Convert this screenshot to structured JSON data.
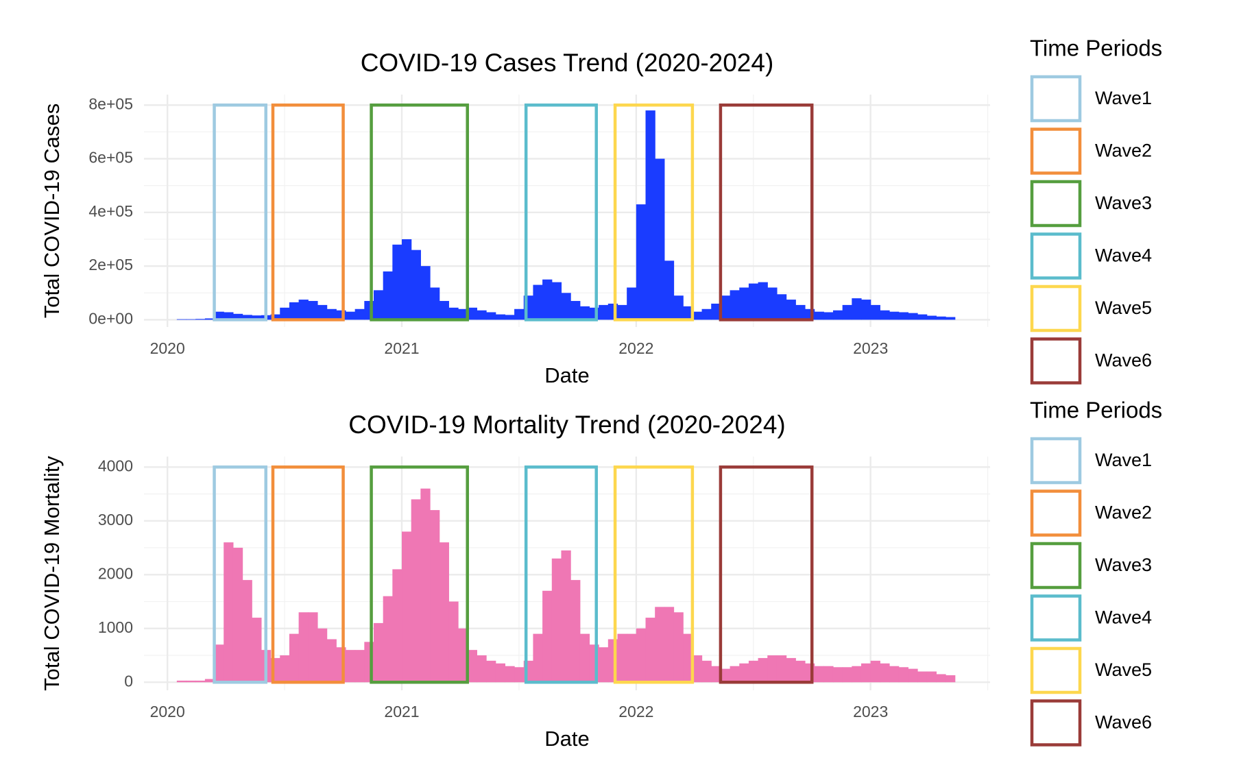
{
  "chart_data": [
    {
      "type": "bar",
      "title": "COVID-19 Cases Trend (2020-2024)",
      "x_label": "Date",
      "y_label": "Total COVID-19 Cases",
      "color": "#1a3cff",
      "grid": true,
      "xlim": [
        2019.9,
        2023.51
      ],
      "xticks": [
        2020,
        2021,
        2022,
        2023
      ],
      "ylim": [
        -27000,
        839000
      ],
      "yticks": [
        {
          "value": 0,
          "label": "0e+00"
        },
        {
          "value": 200000,
          "label": "2e+05"
        },
        {
          "value": 400000,
          "label": "4e+05"
        },
        {
          "value": 600000,
          "label": "6e+05"
        },
        {
          "value": 800000,
          "label": "8e+05"
        }
      ],
      "x": [
        2020.06,
        2020.1,
        2020.14,
        2020.18,
        2020.22,
        2020.26,
        2020.3,
        2020.34,
        2020.38,
        2020.42,
        2020.46,
        2020.5,
        2020.54,
        2020.58,
        2020.62,
        2020.66,
        2020.7,
        2020.74,
        2020.78,
        2020.82,
        2020.86,
        2020.9,
        2020.94,
        2020.98,
        2021.02,
        2021.06,
        2021.1,
        2021.14,
        2021.18,
        2021.22,
        2021.26,
        2021.3,
        2021.34,
        2021.38,
        2021.42,
        2021.46,
        2021.5,
        2021.54,
        2021.58,
        2021.62,
        2021.66,
        2021.7,
        2021.74,
        2021.78,
        2021.82,
        2021.86,
        2021.9,
        2021.94,
        2021.98,
        2022.02,
        2022.06,
        2022.1,
        2022.14,
        2022.18,
        2022.22,
        2022.26,
        2022.3,
        2022.34,
        2022.38,
        2022.42,
        2022.46,
        2022.5,
        2022.54,
        2022.58,
        2022.62,
        2022.66,
        2022.7,
        2022.74,
        2022.78,
        2022.82,
        2022.86,
        2022.9,
        2022.94,
        2022.98,
        2023.02,
        2023.06,
        2023.1,
        2023.14,
        2023.18,
        2023.22,
        2023.26,
        2023.3,
        2023.34
      ],
      "values": [
        2000,
        2000,
        3000,
        5000,
        30000,
        28000,
        22000,
        18000,
        16000,
        17000,
        20000,
        45000,
        65000,
        75000,
        70000,
        55000,
        40000,
        35000,
        30000,
        40000,
        70000,
        110000,
        180000,
        280000,
        300000,
        260000,
        200000,
        120000,
        70000,
        45000,
        40000,
        45000,
        35000,
        28000,
        20000,
        18000,
        40000,
        90000,
        130000,
        150000,
        140000,
        100000,
        70000,
        50000,
        45000,
        55000,
        60000,
        55000,
        120000,
        430000,
        780000,
        600000,
        220000,
        90000,
        50000,
        30000,
        40000,
        60000,
        90000,
        110000,
        120000,
        135000,
        140000,
        120000,
        95000,
        75000,
        55000,
        40000,
        30000,
        28000,
        35000,
        55000,
        80000,
        75000,
        55000,
        35000,
        30000,
        28000,
        25000,
        20000,
        15000,
        12000,
        10000
      ],
      "legend_title": "Time Periods",
      "periods_ymax": 800000,
      "periods": [
        {
          "name": "Wave1",
          "color": "#9ecae1",
          "start": 2020.2,
          "end": 2020.42
        },
        {
          "name": "Wave2",
          "color": "#f28e3b",
          "start": 2020.45,
          "end": 2020.75
        },
        {
          "name": "Wave3",
          "color": "#559e3f",
          "start": 2020.87,
          "end": 2021.28
        },
        {
          "name": "Wave4",
          "color": "#5bbccc",
          "start": 2021.53,
          "end": 2021.83
        },
        {
          "name": "Wave5",
          "color": "#fdd74e",
          "start": 2021.91,
          "end": 2022.24
        },
        {
          "name": "Wave6",
          "color": "#9a3b38",
          "start": 2022.36,
          "end": 2022.75
        }
      ]
    },
    {
      "type": "bar",
      "title": "COVID-19 Mortality Trend (2020-2024)",
      "x_label": "Date",
      "y_label": "Total COVID-19 Mortality",
      "color": "#ef77b4",
      "grid": true,
      "xlim": [
        2019.9,
        2023.51
      ],
      "xticks": [
        2020,
        2021,
        2022,
        2023
      ],
      "ylim": [
        -150,
        4195
      ],
      "yticks": [
        0,
        1000,
        2000,
        3000,
        4000
      ],
      "x": [
        2020.06,
        2020.1,
        2020.14,
        2020.18,
        2020.22,
        2020.26,
        2020.3,
        2020.34,
        2020.38,
        2020.42,
        2020.46,
        2020.5,
        2020.54,
        2020.58,
        2020.62,
        2020.66,
        2020.7,
        2020.74,
        2020.78,
        2020.82,
        2020.86,
        2020.9,
        2020.94,
        2020.98,
        2021.02,
        2021.06,
        2021.1,
        2021.14,
        2021.18,
        2021.22,
        2021.26,
        2021.3,
        2021.34,
        2021.38,
        2021.42,
        2021.46,
        2021.5,
        2021.54,
        2021.58,
        2021.62,
        2021.66,
        2021.7,
        2021.74,
        2021.78,
        2021.82,
        2021.86,
        2021.9,
        2021.94,
        2021.98,
        2022.02,
        2022.06,
        2022.1,
        2022.14,
        2022.18,
        2022.22,
        2022.26,
        2022.3,
        2022.34,
        2022.38,
        2022.42,
        2022.46,
        2022.5,
        2022.54,
        2022.58,
        2022.62,
        2022.66,
        2022.7,
        2022.74,
        2022.78,
        2022.82,
        2022.86,
        2022.9,
        2022.94,
        2022.98,
        2023.02,
        2023.06,
        2023.1,
        2023.14,
        2023.18,
        2023.22,
        2023.26,
        2023.3,
        2023.34
      ],
      "values": [
        30,
        30,
        30,
        60,
        700,
        2600,
        2500,
        1900,
        1200,
        600,
        450,
        500,
        900,
        1300,
        1300,
        1000,
        800,
        650,
        600,
        600,
        750,
        1100,
        1600,
        2100,
        2800,
        3400,
        3600,
        3200,
        2600,
        1500,
        1000,
        600,
        500,
        400,
        350,
        300,
        280,
        400,
        900,
        1700,
        2300,
        2450,
        1900,
        900,
        700,
        650,
        800,
        900,
        900,
        1000,
        1200,
        1400,
        1400,
        1300,
        900,
        500,
        400,
        300,
        250,
        300,
        350,
        400,
        450,
        500,
        500,
        450,
        400,
        350,
        300,
        300,
        280,
        280,
        300,
        350,
        400,
        350,
        300,
        280,
        250,
        200,
        200,
        150,
        130
      ],
      "legend_title": "Time Periods",
      "periods_ymax": 4000,
      "periods": [
        {
          "name": "Wave1",
          "color": "#9ecae1",
          "start": 2020.2,
          "end": 2020.42
        },
        {
          "name": "Wave2",
          "color": "#f28e3b",
          "start": 2020.45,
          "end": 2020.75
        },
        {
          "name": "Wave3",
          "color": "#559e3f",
          "start": 2020.87,
          "end": 2021.28
        },
        {
          "name": "Wave4",
          "color": "#5bbccc",
          "start": 2021.53,
          "end": 2021.83
        },
        {
          "name": "Wave5",
          "color": "#fdd74e",
          "start": 2021.91,
          "end": 2022.24
        },
        {
          "name": "Wave6",
          "color": "#9a3b38",
          "start": 2022.36,
          "end": 2022.75
        }
      ]
    }
  ]
}
